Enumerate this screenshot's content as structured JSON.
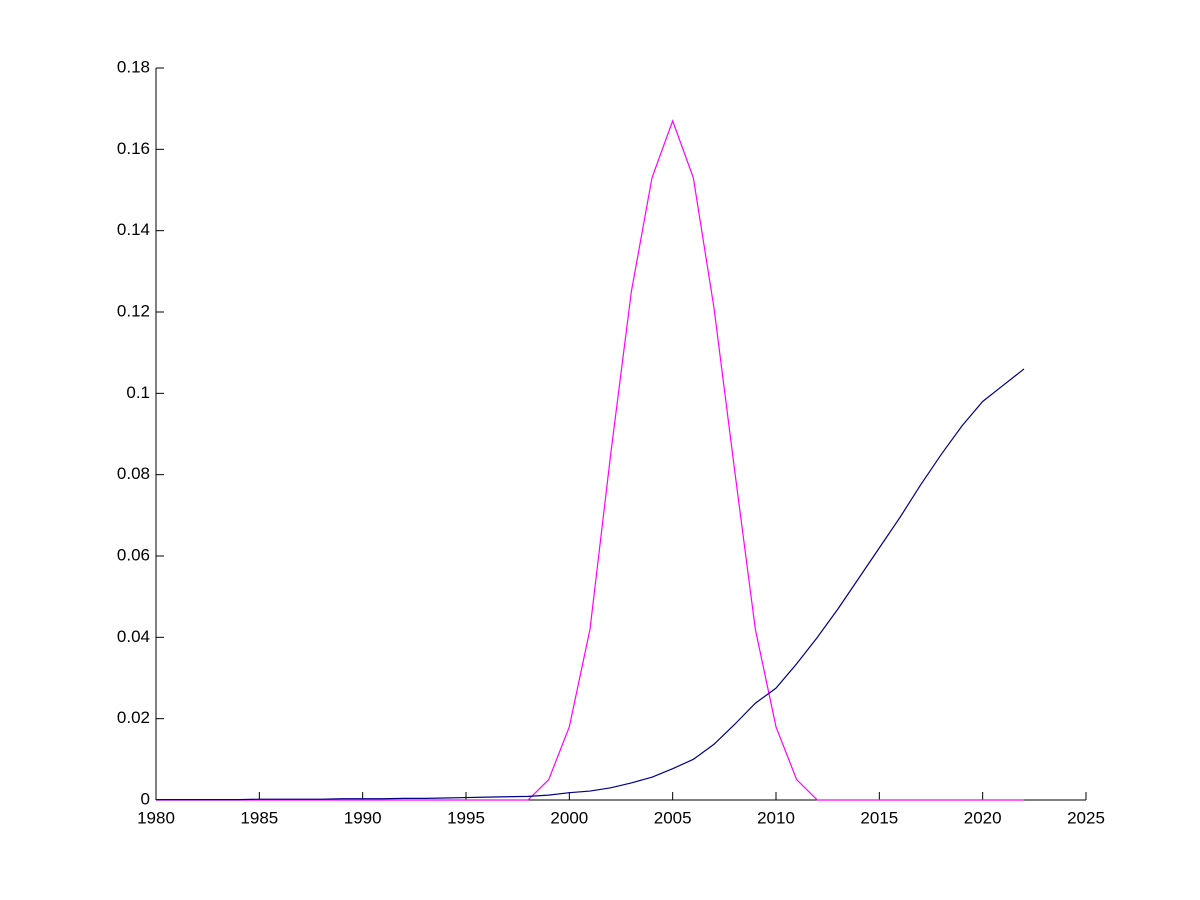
{
  "chart_data": {
    "type": "line",
    "x": [
      1980,
      1981,
      1982,
      1983,
      1984,
      1985,
      1986,
      1987,
      1988,
      1989,
      1990,
      1991,
      1992,
      1993,
      1994,
      1995,
      1996,
      1997,
      1998,
      1999,
      2000,
      2001,
      2002,
      2003,
      2004,
      2005,
      2006,
      2007,
      2008,
      2009,
      2010,
      2011,
      2012,
      2013,
      2014,
      2015,
      2016,
      2017,
      2018,
      2019,
      2020,
      2021,
      2022
    ],
    "series": [
      {
        "name": "magenta",
        "color": "#ff00ff",
        "values": [
          0,
          0,
          0,
          0,
          0,
          0,
          0,
          0,
          0,
          0,
          0,
          0,
          0,
          0,
          0,
          0,
          0,
          0,
          0,
          0.005,
          0.018,
          0.042,
          0.085,
          0.125,
          0.153,
          0.167,
          0.153,
          0.121,
          0.081,
          0.042,
          0.018,
          0.005,
          0,
          0,
          0,
          0,
          0,
          0,
          0,
          0,
          0,
          0,
          0
        ]
      },
      {
        "name": "blue",
        "color": "#00008b",
        "values": [
          0.0001,
          0.0001,
          0.0001,
          0.0001,
          0.0001,
          0.0002,
          0.0002,
          0.0002,
          0.0002,
          0.0003,
          0.0003,
          0.0003,
          0.0004,
          0.0004,
          0.0005,
          0.0006,
          0.0007,
          0.0008,
          0.0009,
          0.0012,
          0.0018,
          0.0022,
          0.003,
          0.0042,
          0.0056,
          0.0077,
          0.01,
          0.0137,
          0.0186,
          0.0238,
          0.0275,
          0.0335,
          0.04,
          0.047,
          0.0545,
          0.062,
          0.0695,
          0.0775,
          0.085,
          0.092,
          0.098,
          0.102,
          0.106
        ]
      }
    ],
    "xlim": [
      1980,
      2025
    ],
    "xticks": [
      1980,
      1985,
      1990,
      1995,
      2000,
      2005,
      2010,
      2015,
      2020,
      2025
    ],
    "ylim": [
      0,
      0.18
    ],
    "yticks": [
      0,
      0.02,
      0.04,
      0.06,
      0.08,
      0.1,
      0.12,
      0.14,
      0.16,
      0.18
    ]
  }
}
